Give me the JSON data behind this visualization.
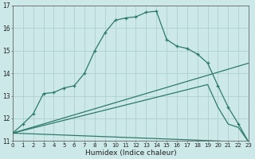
{
  "background_color": "#cce8e8",
  "grid_color": "#aacccc",
  "line_color": "#2d7a6a",
  "xlabel": "Humidex (Indice chaleur)",
  "xlim": [
    0,
    23
  ],
  "ylim": [
    11,
    17
  ],
  "xticks": [
    0,
    1,
    2,
    3,
    4,
    5,
    6,
    7,
    8,
    9,
    10,
    11,
    12,
    13,
    14,
    15,
    16,
    17,
    18,
    19,
    20,
    21,
    22,
    23
  ],
  "yticks": [
    11,
    12,
    13,
    14,
    15,
    16,
    17
  ],
  "line1_x": [
    0,
    1,
    2,
    3,
    4,
    5,
    6,
    7,
    8,
    9,
    10,
    11,
    12,
    13,
    14,
    15,
    16,
    17,
    18,
    19,
    20,
    21,
    22,
    23
  ],
  "line1_y": [
    11.35,
    11.75,
    12.2,
    13.1,
    13.15,
    13.35,
    13.45,
    14.0,
    15.0,
    15.8,
    16.35,
    16.45,
    16.5,
    16.7,
    16.75,
    15.5,
    15.2,
    15.1,
    14.85,
    14.45,
    13.45,
    12.5,
    11.75,
    10.95
  ],
  "line2_x": [
    0,
    23
  ],
  "line2_y": [
    11.35,
    14.45
  ],
  "line3_x": [
    0,
    19,
    20,
    21,
    22,
    23
  ],
  "line3_y": [
    11.35,
    13.5,
    12.5,
    11.75,
    11.6,
    10.95
  ],
  "line4_x": [
    0,
    23
  ],
  "line4_y": [
    11.35,
    10.95
  ]
}
